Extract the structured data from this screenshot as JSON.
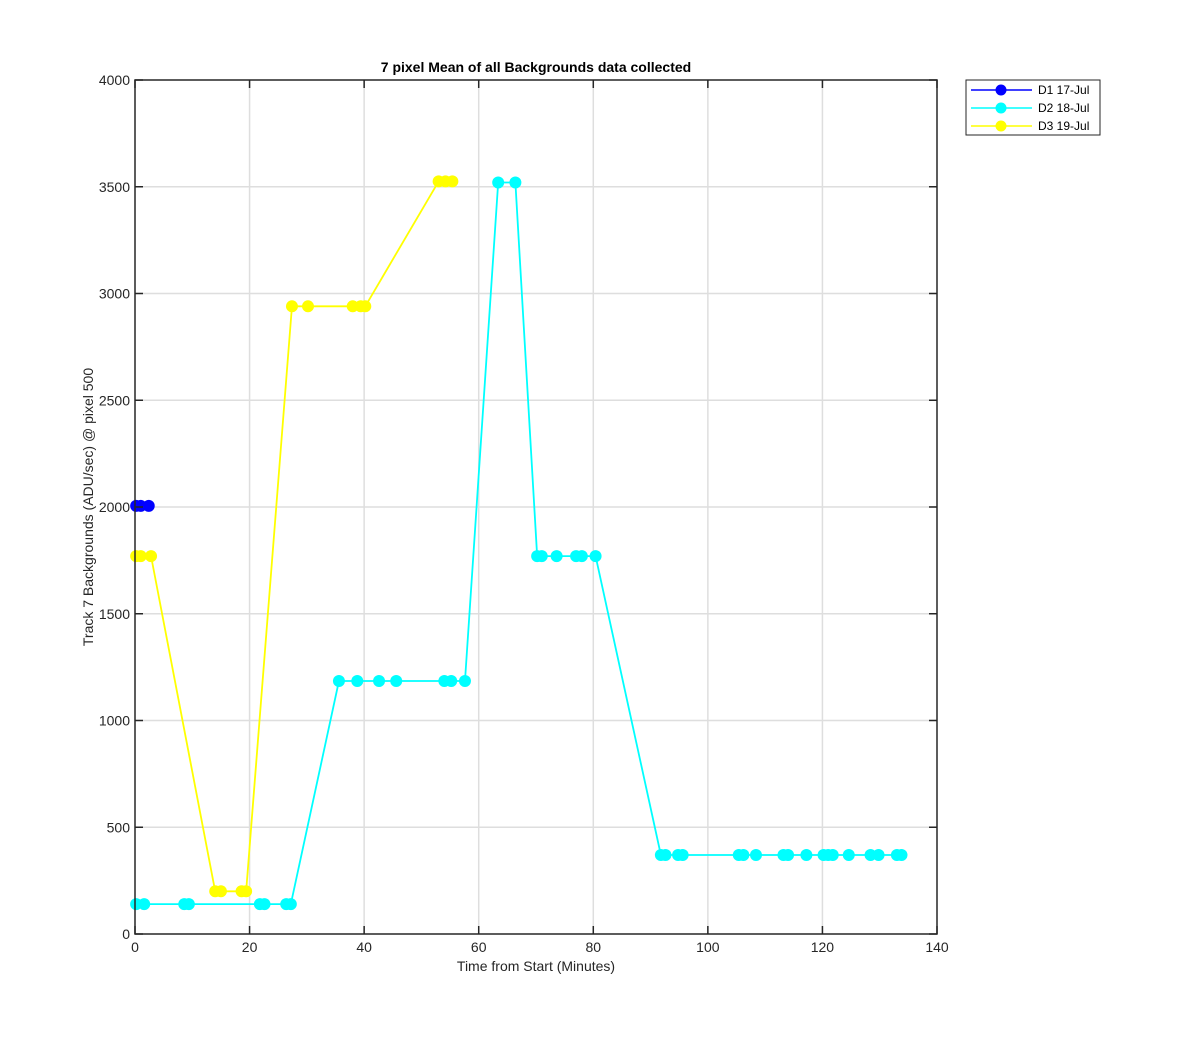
{
  "chart_data": {
    "type": "line",
    "title": "7 pixel Mean of all Backgrounds data collected",
    "xlabel": "Time from Start (Minutes)",
    "ylabel": "Track 7 Backgrounds (ADU/sec) @ pixel 500",
    "xlim": [
      0,
      140
    ],
    "ylim": [
      0,
      4000
    ],
    "xticks": [
      0,
      20,
      40,
      60,
      80,
      100,
      120,
      140
    ],
    "yticks": [
      0,
      500,
      1000,
      1500,
      2000,
      2500,
      3000,
      3500,
      4000
    ],
    "grid": true,
    "legend_position": "outside top-right",
    "series": [
      {
        "name": "D1 17-Jul",
        "color": "#0000ff",
        "marker": "circle",
        "x": [
          0.2,
          1.0,
          2.4
        ],
        "y": [
          2005,
          2005,
          2005
        ]
      },
      {
        "name": "D2 18-Jul",
        "color": "#00ffff",
        "marker": "circle",
        "x": [
          0.2,
          1.6,
          8.6,
          9.4,
          21.8,
          22.6,
          26.4,
          27.2,
          35.6,
          38.8,
          42.6,
          45.6,
          54.0,
          55.2,
          57.6,
          63.4,
          66.4,
          70.2,
          71.0,
          73.6,
          77.0,
          78.0,
          80.4,
          91.8,
          92.6,
          94.8,
          95.6,
          105.4,
          106.2,
          108.4,
          113.2,
          114.0,
          117.2,
          120.2,
          121.0,
          121.8,
          124.6,
          128.4,
          129.8,
          133.0,
          133.8
        ],
        "y": [
          140,
          140,
          140,
          140,
          140,
          140,
          140,
          140,
          1185,
          1185,
          1185,
          1185,
          1185,
          1185,
          1185,
          3520,
          3520,
          1770,
          1770,
          1770,
          1770,
          1770,
          1770,
          370,
          370,
          370,
          370,
          370,
          370,
          370,
          370,
          370,
          370,
          370,
          370,
          370,
          370,
          370,
          370,
          370,
          370
        ]
      },
      {
        "name": "D3 19-Jul",
        "color": "#ffff00",
        "marker": "circle",
        "x": [
          0.2,
          1.0,
          2.8,
          14.0,
          15.0,
          18.6,
          19.4,
          27.4,
          30.2,
          38.0,
          39.4,
          40.2,
          53.0,
          54.2,
          55.4
        ],
        "y": [
          1770,
          1770,
          1770,
          200,
          200,
          200,
          200,
          2940,
          2940,
          2940,
          2940,
          2940,
          3525,
          3525,
          3525
        ]
      }
    ]
  }
}
